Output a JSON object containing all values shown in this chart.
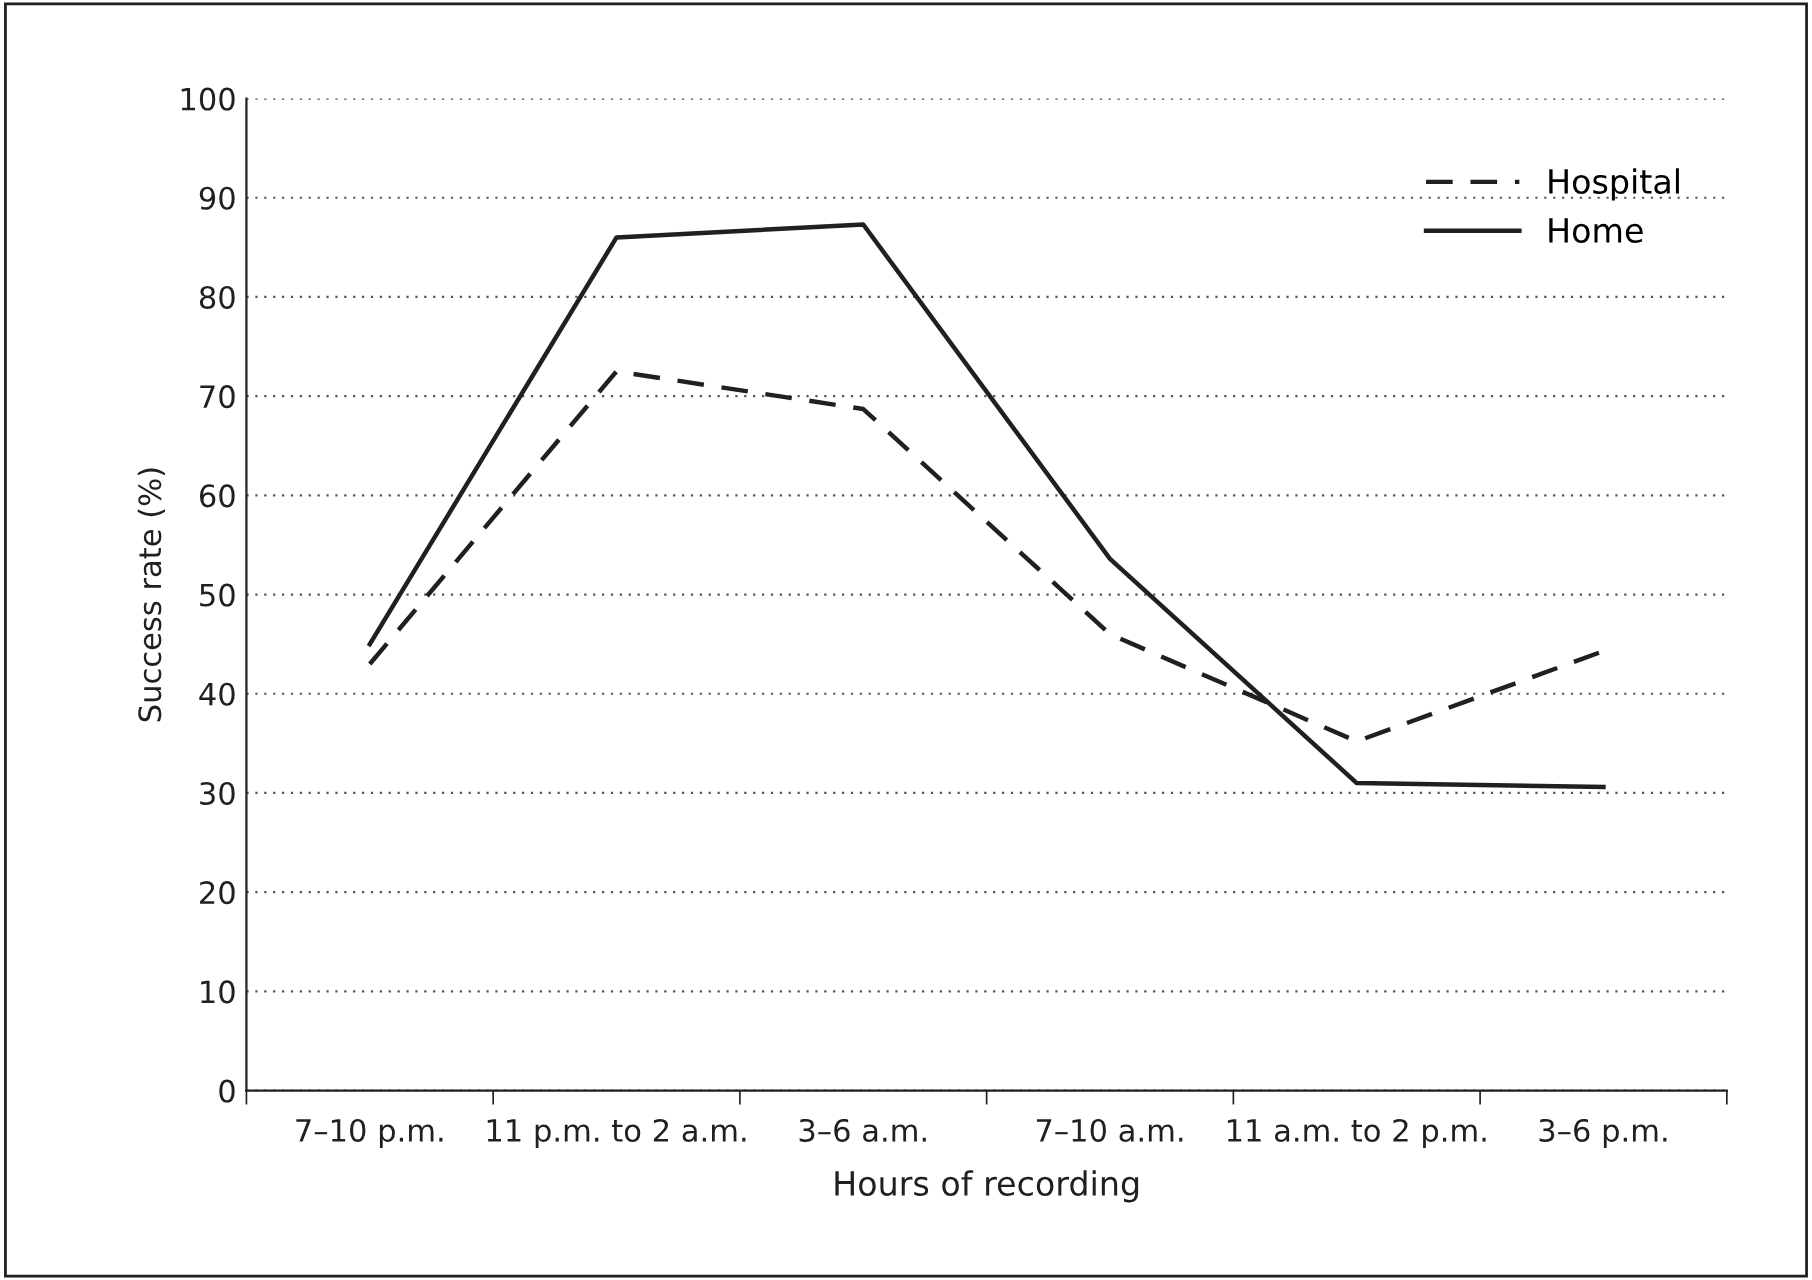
{
  "chart_data": {
    "type": "line",
    "xlabel": "Hours of recording",
    "ylabel": "Success rate (%)",
    "categories": [
      "7–10 p.m.",
      "11 p.m. to 2 a.m.",
      "3–6 a.m.",
      "7–10 a.m.",
      "11 a.m. to 2 p.m.",
      "3–6 p.m."
    ],
    "series": [
      {
        "name": "Hospital",
        "color": "#231f20",
        "line_style": "dashed",
        "values": [
          43,
          72.5,
          68.7,
          46,
          35.2,
          44.3
        ]
      },
      {
        "name": "Home",
        "color": "#231f20",
        "line_style": "solid",
        "values": [
          45,
          86,
          87.3,
          53.6,
          31,
          30.6
        ]
      }
    ],
    "ylim": [
      0,
      100
    ],
    "yticks": [
      0,
      10,
      20,
      30,
      40,
      50,
      60,
      70,
      80,
      90,
      100
    ],
    "grid": "y",
    "legend": "top right",
    "marker": "none"
  }
}
